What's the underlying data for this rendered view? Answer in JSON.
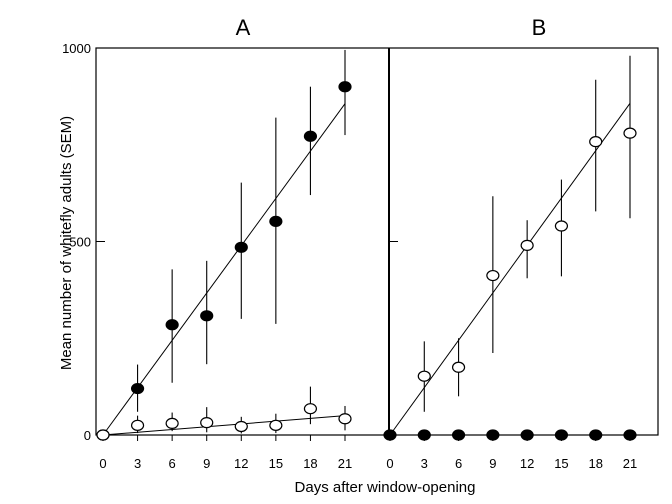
{
  "chart_data": {
    "type": "scatter",
    "xlabel": "Days after window-opening",
    "ylabel": "Mean number of whitefly adults (SEM)",
    "ylim": [
      0,
      1000
    ],
    "yticks": [
      0,
      500,
      1000
    ],
    "xlim": [
      0,
      22
    ],
    "xticks": [
      0,
      3,
      6,
      9,
      12,
      15,
      18,
      21
    ],
    "legend": "none",
    "grid": false,
    "panels": [
      {
        "title": "A",
        "series": [
          {
            "marker": "filled-circle",
            "color": "#000000",
            "x": [
              0,
              3,
              6,
              9,
              12,
              15,
              18,
              21
            ],
            "y": [
              0,
              120,
              285,
              308,
              485,
              552,
              772,
              900
            ],
            "err_low": [
              0,
              60,
              150,
              125,
              185,
              265,
              152,
              125
            ],
            "err_high": [
              0,
              62,
              143,
              142,
              167,
              268,
              128,
              95
            ],
            "trend": [
              0,
              856
            ]
          },
          {
            "marker": "open-circle",
            "color": "#000000",
            "x": [
              0,
              3,
              6,
              9,
              12,
              15,
              18,
              21
            ],
            "y": [
              0,
              25,
              30,
              32,
              22,
              25,
              68,
              42
            ],
            "err_low": [
              0,
              20,
              20,
              25,
              18,
              20,
              40,
              30
            ],
            "err_high": [
              0,
              25,
              28,
              40,
              25,
              30,
              57,
              33
            ],
            "trend": [
              0,
              50
            ]
          }
        ]
      },
      {
        "title": "B",
        "series": [
          {
            "marker": "open-circle",
            "color": "#000000",
            "x": [
              3,
              6,
              9,
              12,
              15,
              18,
              21
            ],
            "y": [
              152,
              175,
              412,
              490,
              540,
              758,
              780
            ],
            "err_low": [
              92,
              75,
              200,
              85,
              130,
              180,
              220
            ],
            "err_high": [
              90,
              75,
              205,
              65,
              120,
              160,
              200
            ],
            "trend": [
              0,
              857
            ]
          },
          {
            "marker": "filled-circle",
            "color": "#000000",
            "x": [
              0,
              3,
              6,
              9,
              12,
              15,
              18,
              21
            ],
            "y": [
              0,
              0,
              0,
              0,
              0,
              0,
              0,
              0
            ],
            "err_low": [
              0,
              0,
              0,
              0,
              0,
              0,
              0,
              0
            ],
            "err_high": [
              0,
              0,
              0,
              0,
              0,
              0,
              0,
              0
            ],
            "trend": null
          }
        ]
      }
    ]
  }
}
